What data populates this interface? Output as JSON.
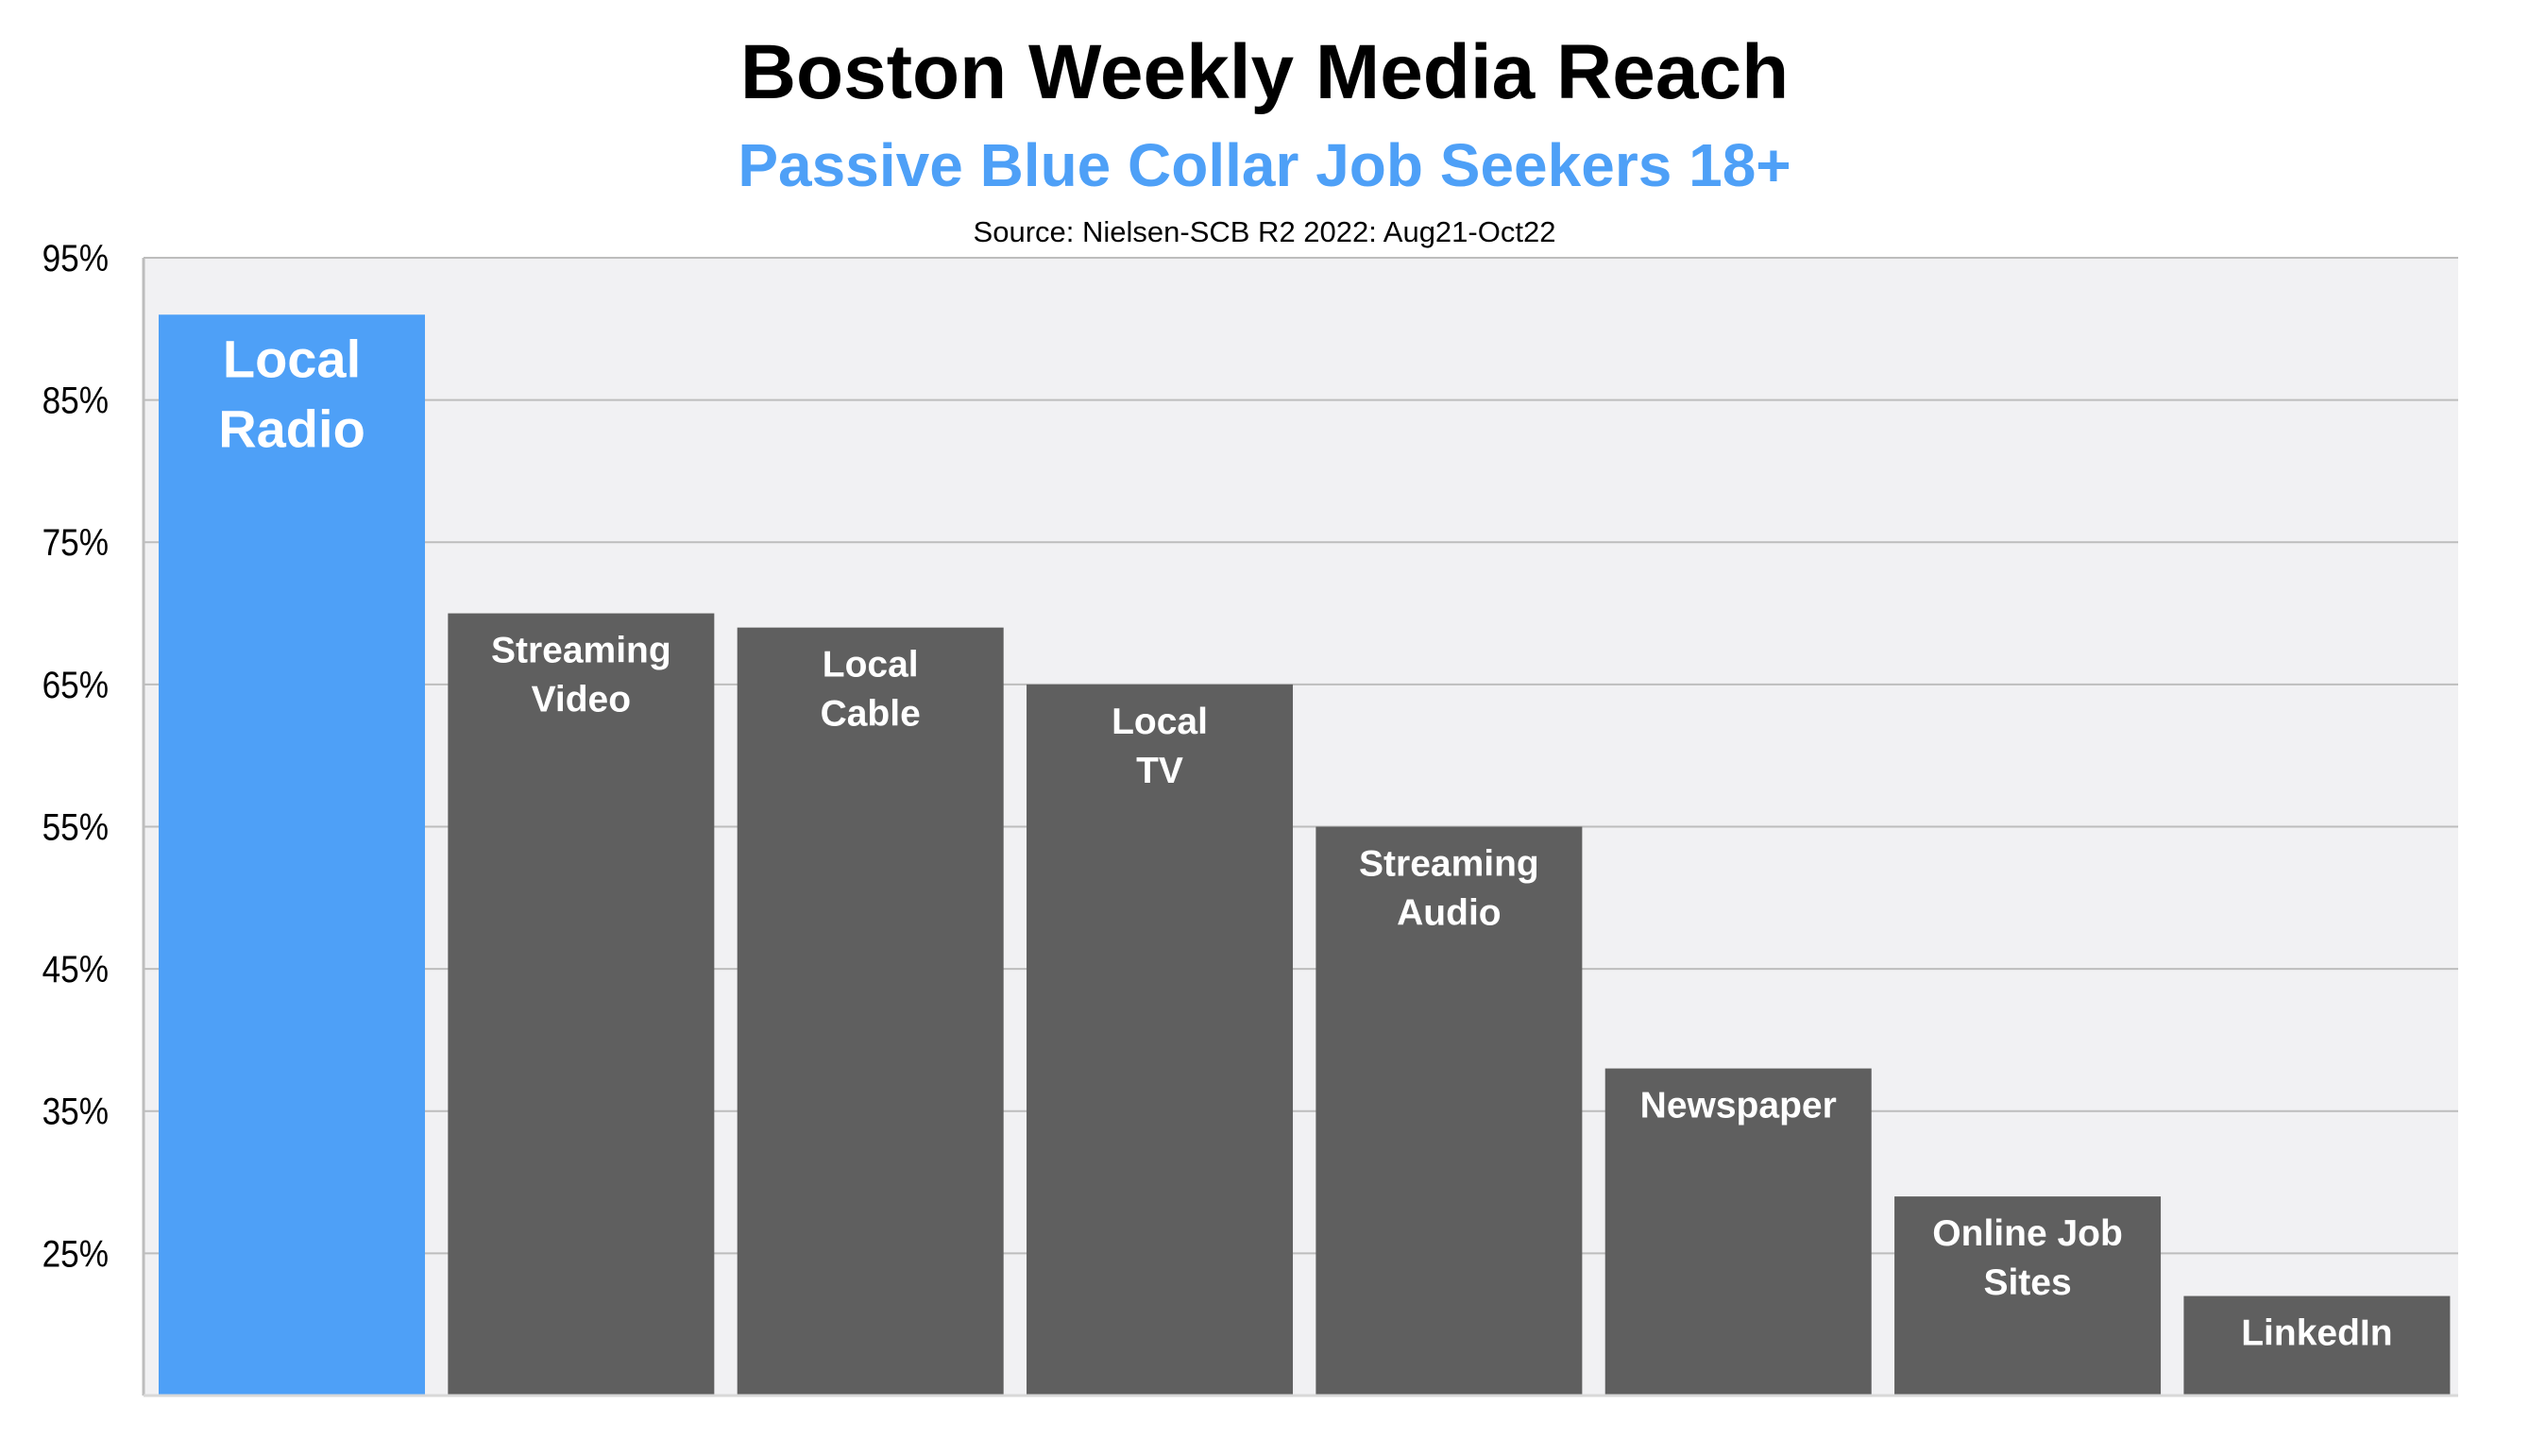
{
  "chart_data": {
    "type": "bar",
    "title": "Boston Weekly Media Reach",
    "subtitle": "Passive Blue Collar Job Seekers 18+",
    "source": "Source: Nielsen-SCB R2 2022: Aug21-Oct22",
    "categories": [
      [
        "Local",
        "Radio"
      ],
      [
        "Streaming",
        "Video"
      ],
      [
        "Local",
        "Cable"
      ],
      [
        "Local",
        "TV"
      ],
      [
        "Streaming",
        "Audio"
      ],
      [
        "Newspaper"
      ],
      [
        "Online Job",
        "Sites"
      ],
      [
        "LinkedIn"
      ]
    ],
    "values": [
      91,
      70,
      69,
      65,
      55,
      38,
      29,
      22
    ],
    "ylim": [
      15,
      95
    ],
    "yticks": [
      25,
      35,
      45,
      55,
      65,
      75,
      85,
      95
    ],
    "ytick_labels": [
      "25%",
      "35%",
      "45%",
      "55%",
      "65%",
      "75%",
      "85%",
      "95%"
    ],
    "grid": true,
    "colors": {
      "highlight": "#4ea0f7",
      "bar": "#5f5f5f",
      "plot_bg": "#f1f1f3",
      "grid": "#bdbdbd",
      "subtitle": "#4ea0f7"
    },
    "highlight_index": 0
  }
}
